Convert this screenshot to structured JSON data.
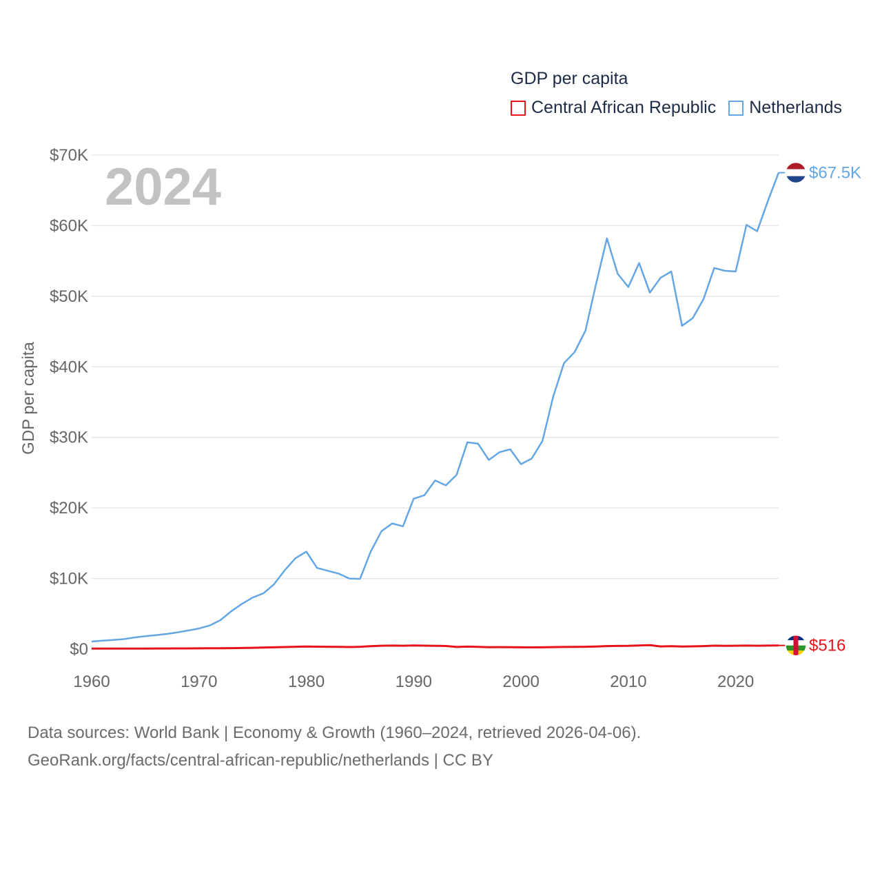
{
  "chart_data": {
    "type": "line",
    "title": "GDP per capita",
    "year_label": "2024",
    "xlabel": "",
    "ylabel": "GDP per capita",
    "xlim": [
      1960,
      2024
    ],
    "ylim": [
      0,
      70000
    ],
    "x_ticks": [
      {
        "value": 1960,
        "label": "1960"
      },
      {
        "value": 1970,
        "label": "1970"
      },
      {
        "value": 1980,
        "label": "1980"
      },
      {
        "value": 1990,
        "label": "1990"
      },
      {
        "value": 2000,
        "label": "2000"
      },
      {
        "value": 2010,
        "label": "2010"
      },
      {
        "value": 2020,
        "label": "2020"
      }
    ],
    "y_ticks": [
      {
        "value": 0,
        "label": "$0"
      },
      {
        "value": 10000,
        "label": "$10K"
      },
      {
        "value": 20000,
        "label": "$20K"
      },
      {
        "value": 30000,
        "label": "$30K"
      },
      {
        "value": 40000,
        "label": "$40K"
      },
      {
        "value": 50000,
        "label": "$50K"
      },
      {
        "value": 60000,
        "label": "$60K"
      },
      {
        "value": 70000,
        "label": "$70K"
      }
    ],
    "grid": true,
    "legend_position": "top-right",
    "series": [
      {
        "name": "Central African Republic",
        "color": "#e8131b",
        "end_label": "$516",
        "x": [
          1960,
          1961,
          1962,
          1963,
          1964,
          1965,
          1966,
          1967,
          1968,
          1969,
          1970,
          1971,
          1972,
          1973,
          1974,
          1975,
          1976,
          1977,
          1978,
          1979,
          1980,
          1981,
          1982,
          1983,
          1984,
          1985,
          1986,
          1987,
          1988,
          1989,
          1990,
          1991,
          1992,
          1993,
          1994,
          1995,
          1996,
          1997,
          1998,
          1999,
          2000,
          2001,
          2002,
          2003,
          2004,
          2005,
          2006,
          2007,
          2008,
          2009,
          2010,
          2011,
          2012,
          2013,
          2014,
          2015,
          2016,
          2017,
          2018,
          2019,
          2020,
          2021,
          2022,
          2023,
          2024
        ],
        "values": [
          70,
          72,
          75,
          78,
          80,
          82,
          85,
          90,
          95,
          100,
          110,
          115,
          125,
          140,
          160,
          190,
          220,
          250,
          290,
          330,
          370,
          340,
          330,
          320,
          290,
          330,
          420,
          480,
          500,
          480,
          520,
          490,
          470,
          440,
          300,
          350,
          320,
          270,
          280,
          270,
          250,
          240,
          250,
          280,
          300,
          310,
          330,
          370,
          430,
          450,
          460,
          520,
          560,
          380,
          410,
          370,
          390,
          430,
          490,
          470,
          480,
          500,
          480,
          500,
          516
        ]
      },
      {
        "name": "Netherlands",
        "color": "#64a6e3",
        "end_label": "$67.5K",
        "x": [
          1960,
          1961,
          1962,
          1963,
          1964,
          1965,
          1966,
          1967,
          1968,
          1969,
          1970,
          1971,
          1972,
          1973,
          1974,
          1975,
          1976,
          1977,
          1978,
          1979,
          1980,
          1981,
          1982,
          1983,
          1984,
          1985,
          1986,
          1987,
          1988,
          1989,
          1990,
          1991,
          1992,
          1993,
          1994,
          1995,
          1996,
          1997,
          1998,
          1999,
          2000,
          2001,
          2002,
          2003,
          2004,
          2005,
          2006,
          2007,
          2008,
          2009,
          2010,
          2011,
          2012,
          2013,
          2014,
          2015,
          2016,
          2017,
          2018,
          2019,
          2020,
          2021,
          2022,
          2023,
          2024
        ],
        "values": [
          1070,
          1200,
          1300,
          1420,
          1650,
          1830,
          1980,
          2150,
          2370,
          2640,
          2920,
          3350,
          4100,
          5350,
          6400,
          7300,
          7900,
          9200,
          11200,
          12900,
          13800,
          11500,
          11100,
          10700,
          10000,
          9950,
          13800,
          16700,
          17800,
          17400,
          21300,
          21800,
          23900,
          23200,
          24700,
          29300,
          29100,
          26800,
          27900,
          28300,
          26200,
          27000,
          29500,
          35800,
          40500,
          42100,
          45100,
          51800,
          58200,
          53200,
          51300,
          54700,
          50500,
          52600,
          53500,
          45800,
          46900,
          49600,
          54000,
          53600,
          53500,
          60100,
          59200,
          63500,
          67500
        ]
      }
    ]
  }
}
